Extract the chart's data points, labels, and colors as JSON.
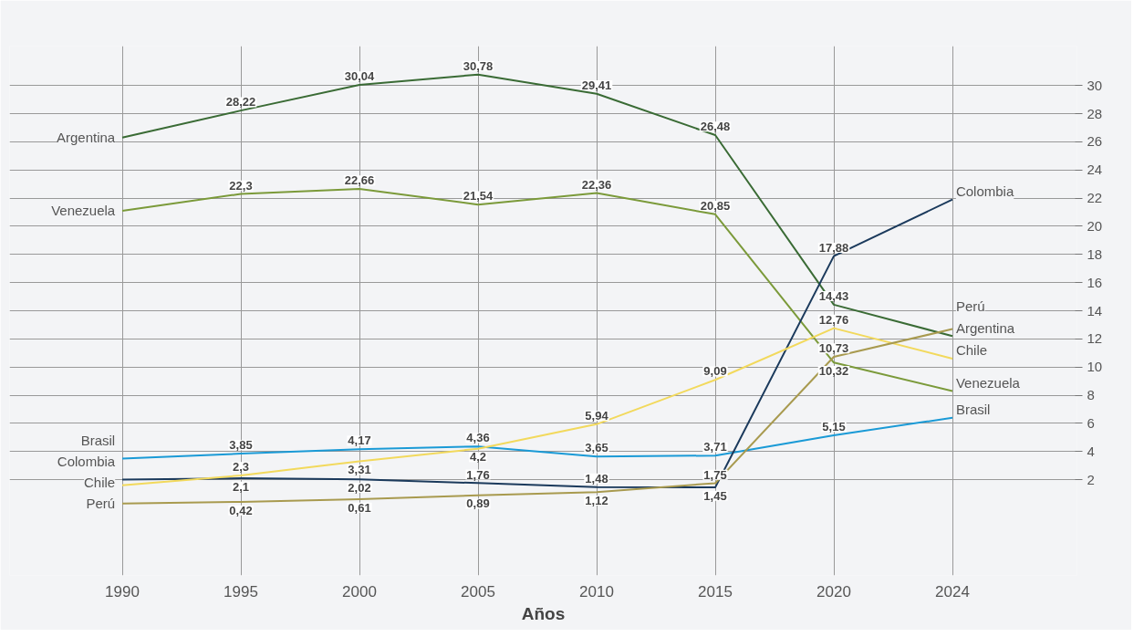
{
  "chart_data": {
    "type": "line",
    "categories": [
      "1990",
      "1995",
      "2000",
      "2005",
      "2010",
      "2015",
      "2020",
      "2024"
    ],
    "xlabel": "Años",
    "ylim": [
      -4.8,
      32.8
    ],
    "yticks": [
      2,
      4,
      6,
      8,
      10,
      12,
      14,
      16,
      18,
      20,
      22,
      24,
      26,
      28,
      30
    ],
    "grid": true,
    "legend": false,
    "series": [
      {
        "name": "Argentina",
        "color": "#3a6b35",
        "values": [
          26.3,
          28.22,
          30.04,
          30.78,
          29.41,
          26.48,
          14.43,
          12.2
        ],
        "value_labels": [
          null,
          "28,22",
          "30,04",
          "30,78",
          "29,41",
          "26,48",
          "14,43",
          null
        ]
      },
      {
        "name": "Venezuela",
        "color": "#7b9a3a",
        "values": [
          21.1,
          22.3,
          22.66,
          21.54,
          22.36,
          20.85,
          10.32,
          8.3
        ],
        "value_labels": [
          null,
          "22,3",
          "22,66",
          "21,54",
          "22,36",
          "20,85",
          "10,32",
          null
        ]
      },
      {
        "name": "Brasil",
        "color": "#1a9ad6",
        "values": [
          3.5,
          3.85,
          4.17,
          4.36,
          3.65,
          3.71,
          5.15,
          6.4
        ],
        "value_labels": [
          null,
          "3,85",
          "4,17",
          "4,36",
          "3,65",
          "3,71",
          "5,15",
          null
        ]
      },
      {
        "name": "Colombia",
        "color": "#1b3a5c",
        "values": [
          2.0,
          2.1,
          2.02,
          1.76,
          1.48,
          1.45,
          17.88,
          21.9
        ],
        "value_labels": [
          null,
          "2,1",
          "2,02",
          "1,76",
          "1,48",
          "1,45",
          "17,88",
          null
        ]
      },
      {
        "name": "Chile",
        "color": "#f2d95c",
        "values": [
          1.6,
          2.3,
          3.31,
          4.2,
          5.94,
          9.09,
          12.76,
          10.6
        ],
        "value_labels": [
          null,
          "2,3",
          "3,31",
          "4,2",
          "5,94",
          "9,09",
          "12,76",
          null
        ]
      },
      {
        "name": "Perú",
        "color": "#a89a4f",
        "values": [
          0.3,
          0.42,
          0.61,
          0.89,
          1.12,
          1.75,
          10.73,
          12.7
        ],
        "value_labels": [
          null,
          "0,42",
          "0,61",
          "0,89",
          "1,12",
          "1,75",
          "10,73",
          null
        ]
      }
    ]
  }
}
